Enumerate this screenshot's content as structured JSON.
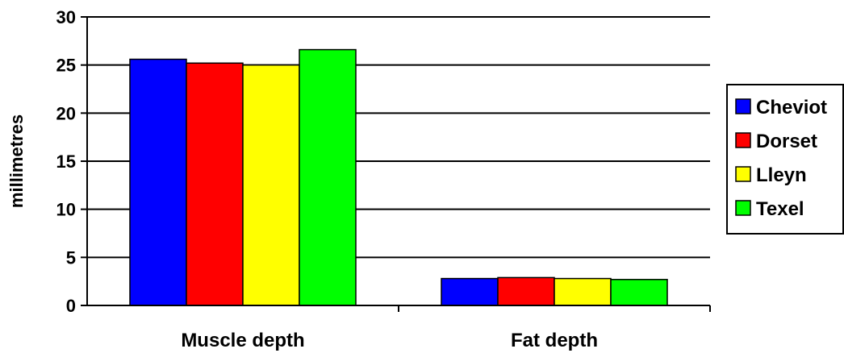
{
  "chart_data": {
    "type": "bar",
    "title": "",
    "xlabel": "",
    "ylabel": "millimetres",
    "ylim": [
      0,
      30
    ],
    "yticks": [
      0,
      5,
      10,
      15,
      20,
      25,
      30
    ],
    "grid": true,
    "legend_position": "right",
    "categories": [
      "Muscle depth",
      "Fat depth"
    ],
    "series": [
      {
        "name": "Cheviot",
        "color": "#0000FF",
        "values": [
          25.6,
          2.8
        ]
      },
      {
        "name": "Dorset",
        "color": "#FF0000",
        "values": [
          25.2,
          2.9
        ]
      },
      {
        "name": "Lleyn",
        "color": "#FFFF00",
        "values": [
          25.0,
          2.8
        ]
      },
      {
        "name": "Texel",
        "color": "#00FF00",
        "values": [
          26.6,
          2.7
        ]
      }
    ]
  }
}
